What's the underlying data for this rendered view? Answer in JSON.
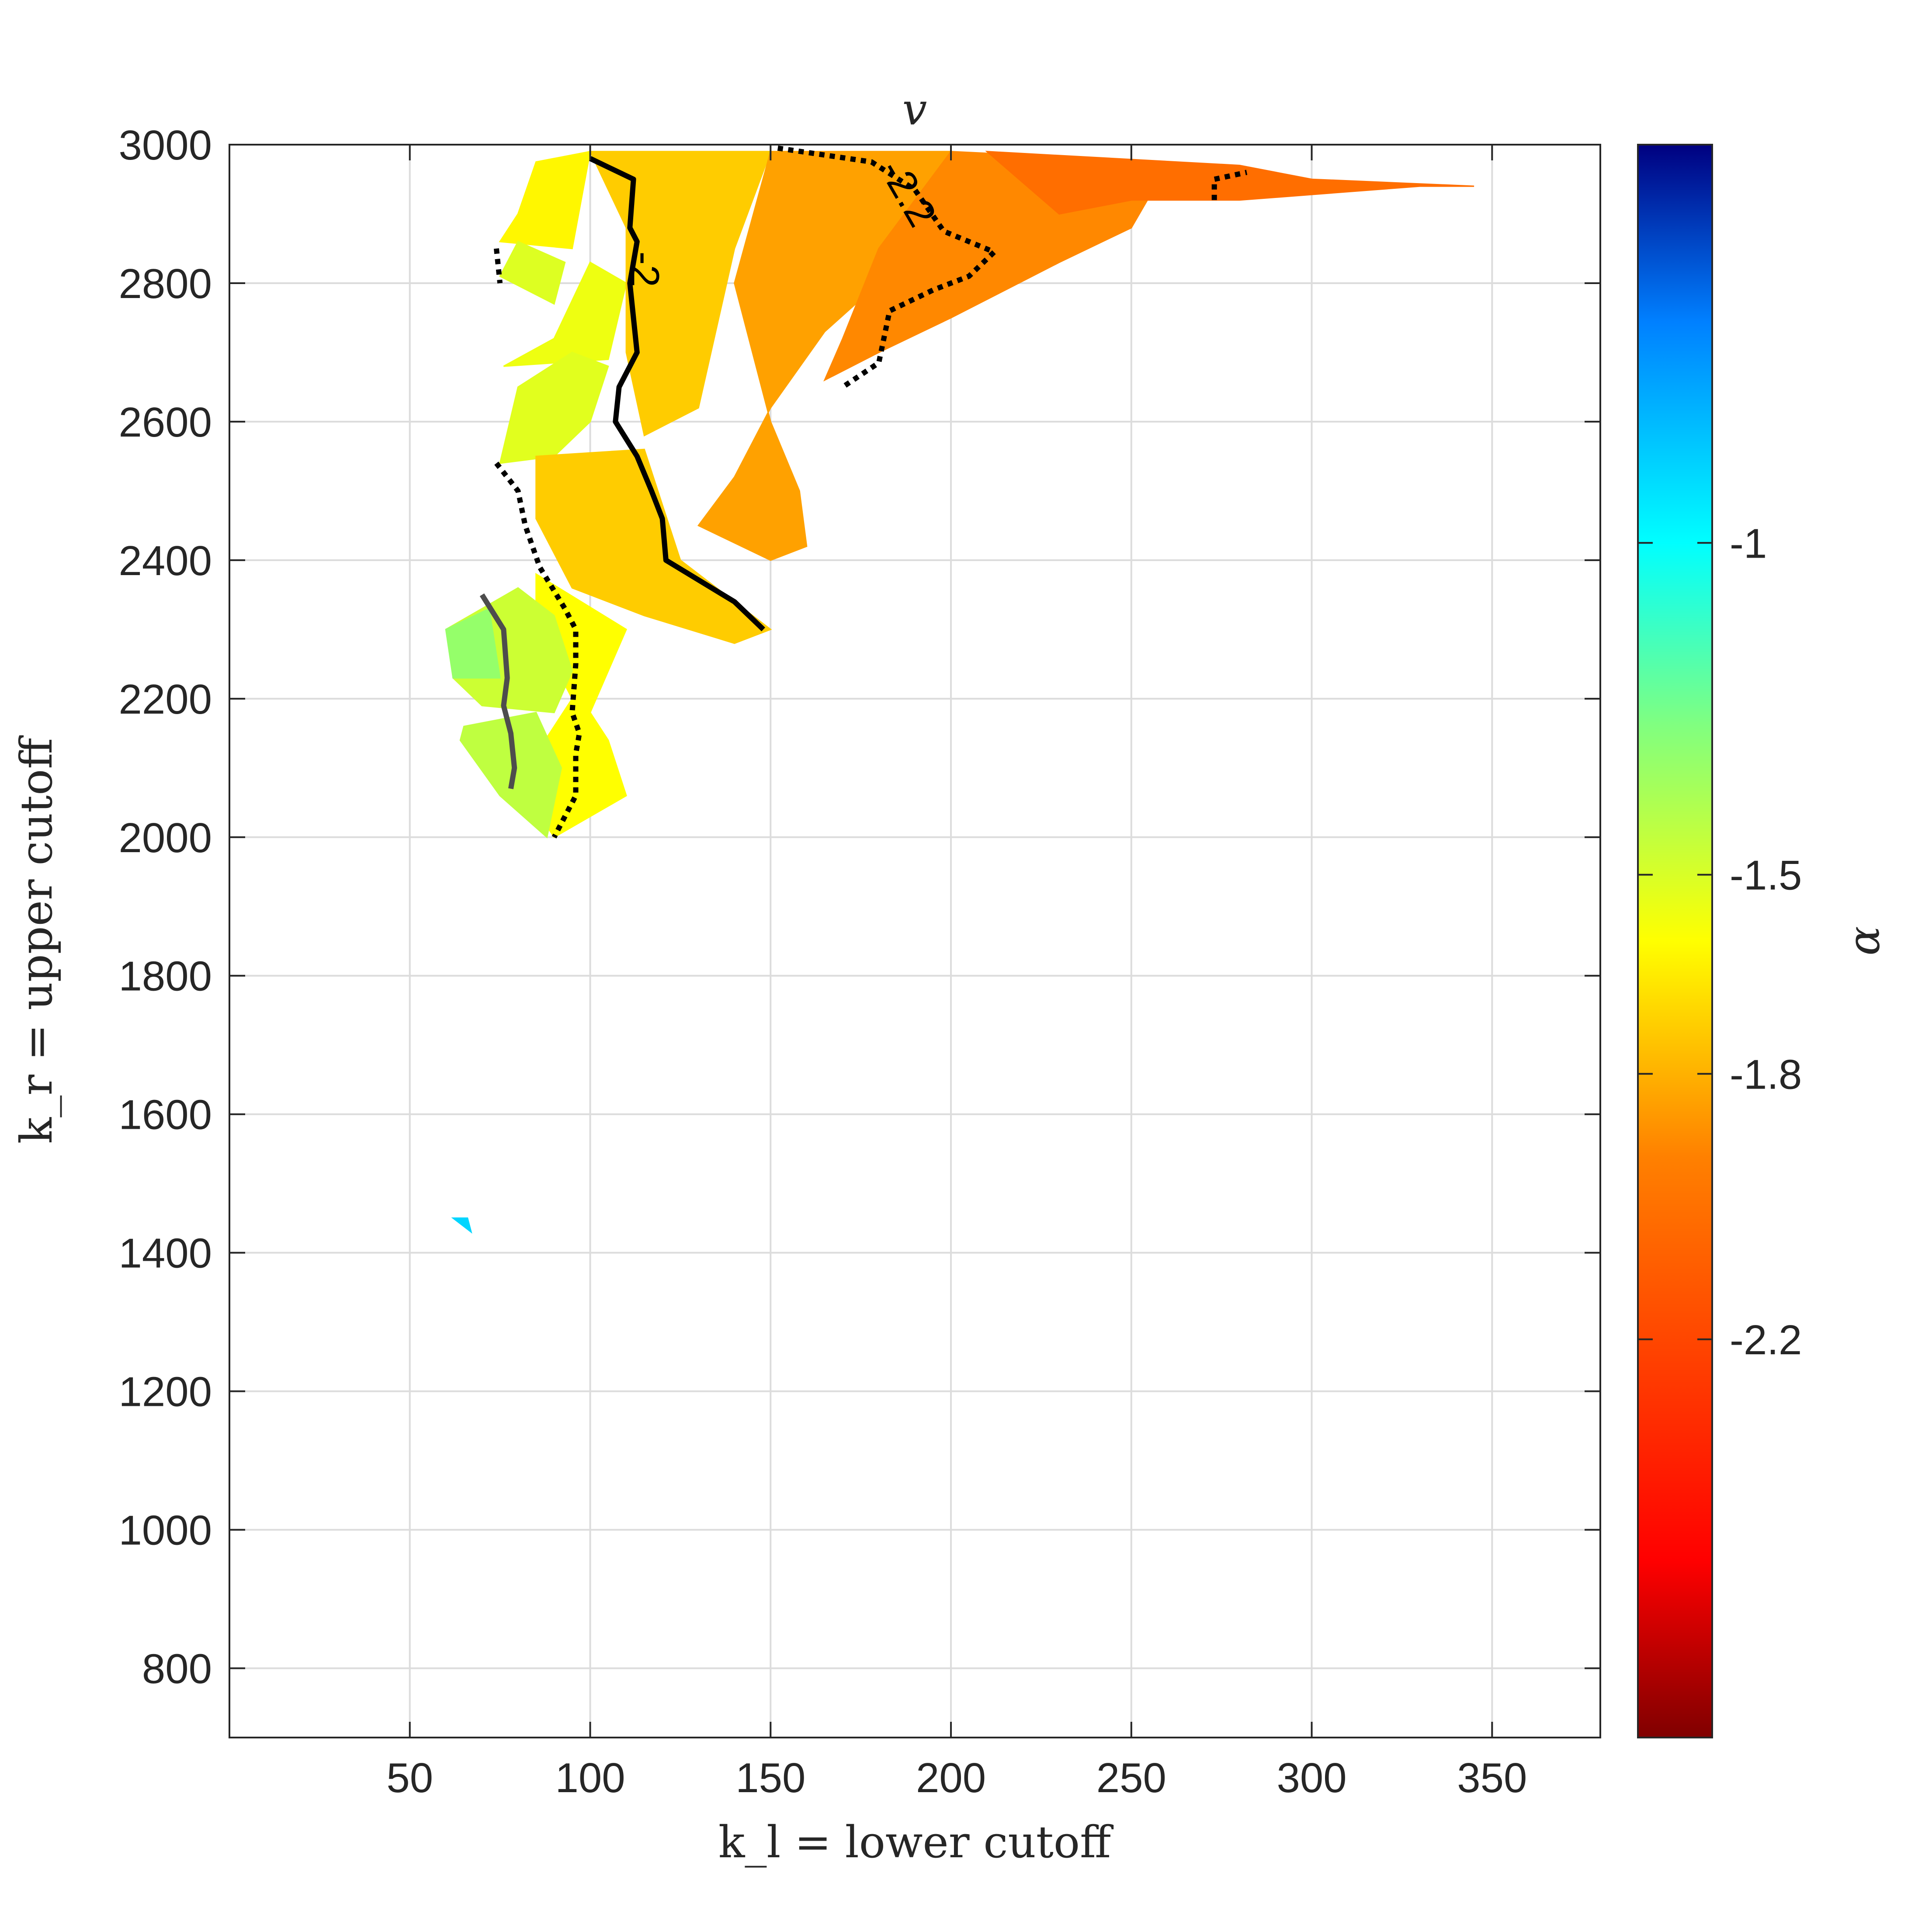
{
  "chart_data": {
    "type": "heatmap",
    "title": "v",
    "xlabel": "k_l = lower cutoff",
    "ylabel": "k_r = upper cutoff",
    "colorbar_label": "α",
    "xlim": [
      0,
      380
    ],
    "ylim": [
      700,
      3000
    ],
    "x_ticks": [
      50,
      100,
      150,
      200,
      250,
      300,
      350
    ],
    "y_ticks": [
      800,
      1000,
      1200,
      1400,
      1600,
      1800,
      2000,
      2200,
      2400,
      2600,
      2800,
      3000
    ],
    "x_tick_labels": [
      "50",
      "100",
      "150",
      "200",
      "250",
      "300",
      "350"
    ],
    "y_tick_labels": [
      "800",
      "1000",
      "1200",
      "1400",
      "1600",
      "1800",
      "2000",
      "2200",
      "2400",
      "2600",
      "2800",
      "3000"
    ],
    "grid": true,
    "colormap": "jet_reversed",
    "clim": [
      -2.8,
      -0.4
    ],
    "colorbar_ticks": [
      -1,
      -1.5,
      -1.8,
      -2.2
    ],
    "colorbar_tick_labels": [
      "-1",
      "-1.5",
      "-1.8",
      "-2.2"
    ],
    "regions": [
      {
        "alpha": -1.92,
        "points": [
          [
            75,
            2860
          ],
          [
            95,
            2850
          ],
          [
            100,
            2990
          ],
          [
            85,
            2975
          ],
          [
            80,
            2900
          ]
        ]
      },
      {
        "alpha": -1.82,
        "points": [
          [
            75,
            2810
          ],
          [
            90,
            2770
          ],
          [
            93,
            2830
          ],
          [
            80,
            2860
          ]
        ]
      },
      {
        "alpha": -1.86,
        "points": [
          [
            76,
            2680
          ],
          [
            105,
            2690
          ],
          [
            110,
            2800
          ],
          [
            100,
            2830
          ],
          [
            90,
            2720
          ]
        ]
      },
      {
        "alpha": -1.83,
        "points": [
          [
            75,
            2540
          ],
          [
            90,
            2550
          ],
          [
            100,
            2600
          ],
          [
            105,
            2680
          ],
          [
            95,
            2700
          ],
          [
            80,
            2650
          ]
        ]
      },
      {
        "alpha": -2.02,
        "points": [
          [
            100,
            2990
          ],
          [
            150,
            2990
          ],
          [
            140,
            2850
          ],
          [
            130,
            2620
          ],
          [
            115,
            2580
          ],
          [
            110,
            2700
          ],
          [
            110,
            2880
          ]
        ]
      },
      {
        "alpha": -2.02,
        "points": [
          [
            85,
            2550
          ],
          [
            115,
            2560
          ],
          [
            125,
            2400
          ],
          [
            150,
            2300
          ],
          [
            140,
            2280
          ],
          [
            115,
            2320
          ],
          [
            95,
            2360
          ],
          [
            85,
            2460
          ]
        ]
      },
      {
        "alpha": -2.12,
        "points": [
          [
            150,
            2990
          ],
          [
            200,
            2990
          ],
          [
            195,
            2870
          ],
          [
            165,
            2730
          ],
          [
            150,
            2620
          ],
          [
            140,
            2520
          ],
          [
            130,
            2450
          ],
          [
            150,
            2400
          ],
          [
            160,
            2420
          ],
          [
            158,
            2500
          ],
          [
            150,
            2600
          ],
          [
            140,
            2800
          ]
        ]
      },
      {
        "alpha": -2.18,
        "points": [
          [
            200,
            2990
          ],
          [
            240,
            2980
          ],
          [
            260,
            2970
          ],
          [
            250,
            2880
          ],
          [
            230,
            2830
          ],
          [
            200,
            2750
          ],
          [
            180,
            2700
          ],
          [
            165,
            2660
          ],
          [
            170,
            2720
          ],
          [
            180,
            2850
          ]
        ]
      },
      {
        "alpha": -2.24,
        "points": [
          [
            210,
            2990
          ],
          [
            280,
            2970
          ],
          [
            300,
            2950
          ],
          [
            345,
            2940
          ],
          [
            330,
            2940
          ],
          [
            280,
            2920
          ],
          [
            250,
            2920
          ],
          [
            230,
            2900
          ]
        ]
      },
      {
        "alpha": -1.9,
        "points": [
          [
            85,
            2380
          ],
          [
            110,
            2300
          ],
          [
            100,
            2180
          ],
          [
            105,
            2140
          ],
          [
            110,
            2060
          ],
          [
            90,
            2000
          ],
          [
            80,
            2080
          ],
          [
            95,
            2200
          ],
          [
            85,
            2300
          ]
        ]
      },
      {
        "alpha": -1.78,
        "points": [
          [
            60,
            2300
          ],
          [
            80,
            2360
          ],
          [
            90,
            2320
          ],
          [
            95,
            2240
          ],
          [
            90,
            2180
          ],
          [
            70,
            2190
          ],
          [
            62,
            2230
          ]
        ]
      },
      {
        "alpha": -1.75,
        "points": [
          [
            65,
            2160
          ],
          [
            85,
            2180
          ],
          [
            92,
            2100
          ],
          [
            88,
            2000
          ],
          [
            75,
            2060
          ],
          [
            64,
            2140
          ]
        ]
      },
      {
        "alpha": -1.65,
        "points": [
          [
            60,
            2300
          ],
          [
            72,
            2330
          ],
          [
            75,
            2230
          ],
          [
            62,
            2230
          ]
        ]
      },
      {
        "alpha": -1.2,
        "points": [
          [
            62,
            1450
          ],
          [
            66,
            1450
          ],
          [
            67,
            1430
          ]
        ]
      }
    ],
    "contours": [
      {
        "level": -2,
        "style": "solid",
        "color": "#000000",
        "label": "-2",
        "points": [
          [
            100,
            2980
          ],
          [
            112,
            2950
          ],
          [
            111,
            2880
          ],
          [
            113,
            2860
          ],
          [
            111,
            2800
          ],
          [
            113,
            2700
          ],
          [
            108,
            2650
          ],
          [
            107,
            2600
          ],
          [
            113,
            2550
          ],
          [
            117,
            2500
          ],
          [
            120,
            2460
          ],
          [
            121,
            2400
          ],
          [
            140,
            2340
          ],
          [
            148,
            2300
          ]
        ]
      },
      {
        "level": -2.2,
        "style": "dotted",
        "color": "#000000",
        "label": "-2.2",
        "points": [
          [
            152,
            2995
          ],
          [
            178,
            2975
          ],
          [
            190,
            2935
          ],
          [
            198,
            2875
          ],
          [
            212,
            2845
          ],
          [
            205,
            2810
          ],
          [
            195,
            2790
          ],
          [
            183,
            2760
          ],
          [
            181,
            2710
          ],
          [
            180,
            2685
          ],
          [
            170,
            2650
          ]
        ]
      },
      {
        "level": -2.2,
        "style": "dotted",
        "color": "#000000",
        "label": "",
        "points": [
          [
            273,
            2920
          ],
          [
            273,
            2950
          ],
          [
            282,
            2960
          ]
        ]
      },
      {
        "level": -1.8,
        "style": "dotted",
        "color": "#000000",
        "label": "",
        "points": [
          [
            74,
            2850
          ],
          [
            75,
            2800
          ]
        ]
      },
      {
        "level": -1.8,
        "style": "dotted",
        "color": "#000000",
        "label": "",
        "points": [
          [
            74,
            2540
          ],
          [
            80,
            2500
          ],
          [
            82,
            2450
          ],
          [
            86,
            2390
          ],
          [
            93,
            2330
          ],
          [
            96,
            2300
          ],
          [
            96,
            2250
          ],
          [
            95,
            2180
          ],
          [
            97,
            2150
          ],
          [
            96,
            2120
          ],
          [
            96,
            2060
          ],
          [
            90,
            2000
          ]
        ]
      },
      {
        "level": -1.6,
        "style": "solid",
        "color": "#4d4d4d",
        "label": "",
        "points": [
          [
            70,
            2350
          ],
          [
            76,
            2300
          ],
          [
            77,
            2230
          ],
          [
            76,
            2190
          ],
          [
            78,
            2150
          ],
          [
            79,
            2100
          ],
          [
            78,
            2070
          ]
        ]
      }
    ]
  }
}
